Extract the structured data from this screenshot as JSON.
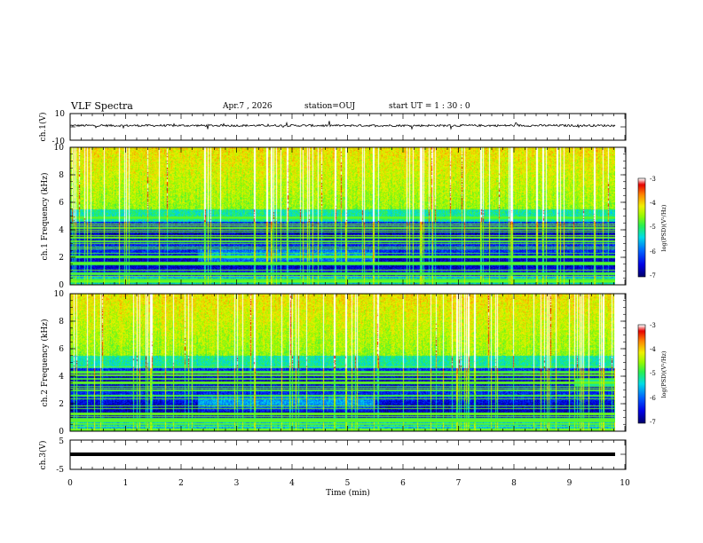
{
  "header": {
    "title": "VLF Spectra",
    "date": "Apr.7 , 2026",
    "station": "station=OUJ",
    "start": "start UT = 1 : 30 : 0"
  },
  "chart_data": [
    {
      "type": "line",
      "panel": "waveform-ch1",
      "ylabel": "ch.1(V)",
      "ylim": [
        -10,
        10
      ],
      "ytick_labels": [
        "10",
        "-10"
      ],
      "baseline": 1,
      "noise_amplitude": 0.8,
      "x": [
        0,
        10
      ]
    },
    {
      "type": "heatmap",
      "panel": "spectrogram-ch1",
      "ylabel": "ch.1 Frequency (kHz)",
      "ylim": [
        0,
        10
      ],
      "xlim": [
        0,
        10
      ],
      "ytick_labels": [
        "0",
        "2",
        "4",
        "6",
        "8",
        "10"
      ],
      "colorbar": {
        "label": "log(PSD)(V²/Hz)",
        "range": [
          -7,
          -3
        ],
        "tick_labels": [
          "-7",
          "-6",
          "-5",
          "-4",
          "-3"
        ]
      }
    },
    {
      "type": "heatmap",
      "panel": "spectrogram-ch2",
      "ylabel": "ch.2 Frequency (kHz)",
      "ylim": [
        0,
        10
      ],
      "xlim": [
        0,
        10
      ],
      "ytick_labels": [
        "0",
        "2",
        "4",
        "6",
        "8",
        "10"
      ],
      "colorbar": {
        "label": "log(PSD)(V²/Hz)",
        "range": [
          -7,
          -3
        ],
        "tick_labels": [
          "-7",
          "-6",
          "-5",
          "-4",
          "-3"
        ]
      }
    },
    {
      "type": "line",
      "panel": "waveform-ch3",
      "ylabel": "ch.3(V)",
      "ylim": [
        -5,
        5
      ],
      "ytick_labels": [
        "5",
        "-5"
      ],
      "baseline": -1,
      "x": [
        0,
        10
      ]
    }
  ],
  "xaxis": {
    "label": "Time (min)",
    "range": [
      0,
      10
    ],
    "tick_labels": [
      "0",
      "1",
      "2",
      "3",
      "4",
      "5",
      "6",
      "7",
      "8",
      "9",
      "10"
    ]
  },
  "colors": {
    "colormap": [
      "#00007a",
      "#0000ff",
      "#0080ff",
      "#00e0e0",
      "#40ff40",
      "#c0ff00",
      "#ffff00",
      "#ff8000",
      "#ff0000",
      "#ffffff"
    ],
    "trace": "#000000"
  }
}
